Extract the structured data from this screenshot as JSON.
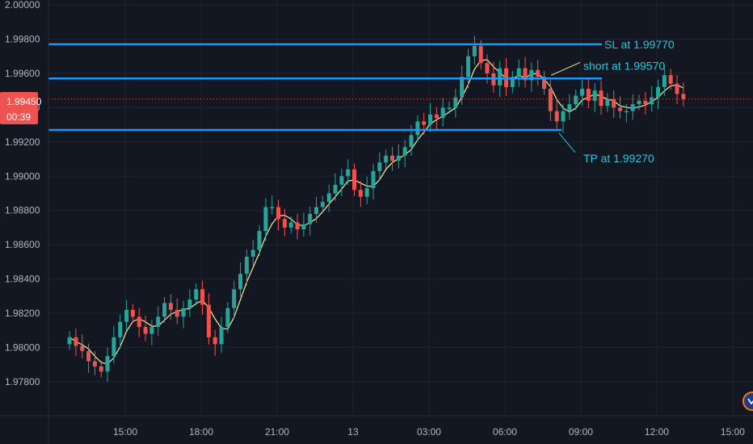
{
  "chart_data": {
    "type": "candlestick",
    "title": "",
    "xlabel": "",
    "ylabel": "",
    "ylim": [
      1.977,
      2.0003
    ],
    "y_ticks": [
      "2.00000",
      "1.99800",
      "1.99600",
      "1.99400",
      "1.99200",
      "1.99000",
      "1.98800",
      "1.98600",
      "1.98400",
      "1.98200",
      "1.98000",
      "1.97800"
    ],
    "x_ticks": [
      {
        "label": "15:00",
        "t": 15
      },
      {
        "label": "18:00",
        "t": 18
      },
      {
        "label": "21:00",
        "t": 21
      },
      {
        "label": "13",
        "t": 24
      },
      {
        "label": "03:00",
        "t": 27
      },
      {
        "label": "06:00",
        "t": 30
      },
      {
        "label": "09:00",
        "t": 33
      },
      {
        "label": "12:00",
        "t": 36
      },
      {
        "label": "15:00",
        "t": 39
      }
    ],
    "current_price": {
      "value": 1.9945,
      "label": "1.99450",
      "countdown": "00:39"
    },
    "levels": [
      {
        "name": "SL",
        "value": 1.9977,
        "label": "SL at 1.99770"
      },
      {
        "name": "short",
        "value": 1.9957,
        "label": "short at 1.99570"
      },
      {
        "name": "TP",
        "value": 1.9927,
        "label": "TP at 1.99270"
      }
    ],
    "closes": [
      1.9806,
      1.9801,
      1.9798,
      1.9792,
      1.9789,
      1.9786,
      1.9795,
      1.9806,
      1.9815,
      1.9822,
      1.9818,
      1.9812,
      1.9808,
      1.9812,
      1.9818,
      1.9826,
      1.9822,
      1.9818,
      1.9823,
      1.9828,
      1.9834,
      1.9825,
      1.9806,
      1.9802,
      1.9812,
      1.9823,
      1.9834,
      1.9843,
      1.9853,
      1.9857,
      1.9868,
      1.9882,
      1.9882,
      1.9875,
      1.987,
      1.9873,
      1.9869,
      1.9872,
      1.9878,
      1.9882,
      1.9885,
      1.989,
      1.9895,
      1.99,
      1.9904,
      1.9892,
      1.9888,
      1.9893,
      1.9903,
      1.9908,
      1.9912,
      1.9909,
      1.9912,
      1.9917,
      1.9924,
      1.9932,
      1.993,
      1.9936,
      1.9934,
      1.994,
      1.994,
      1.9946,
      1.9958,
      1.997,
      1.9976,
      1.9966,
      1.996,
      1.9953,
      1.9963,
      1.9952,
      1.9958,
      1.9963,
      1.9956,
      1.9962,
      1.9958,
      1.9951,
      1.9938,
      1.9932,
      1.9938,
      1.9942,
      1.9947,
      1.9951,
      1.9944,
      1.995,
      1.9941,
      1.9945,
      1.994,
      1.9938,
      1.9938,
      1.9942,
      1.9944,
      1.9942,
      1.9946,
      1.9952,
      1.9959,
      1.9954,
      1.9948,
      1.9945
    ]
  },
  "colors": {
    "background": "#131722",
    "grid": "#1f2430",
    "bull": "#26a69a",
    "bear": "#ef5350",
    "ma": "#f5ee9e",
    "levels": "#2196f3",
    "annotation": "#26c6da",
    "price_tag": "#ef5350",
    "axis_text": "#b2b5be",
    "logo_ring": "#f57c00"
  },
  "icons": {
    "logo": "tradingview-logo-icon"
  }
}
